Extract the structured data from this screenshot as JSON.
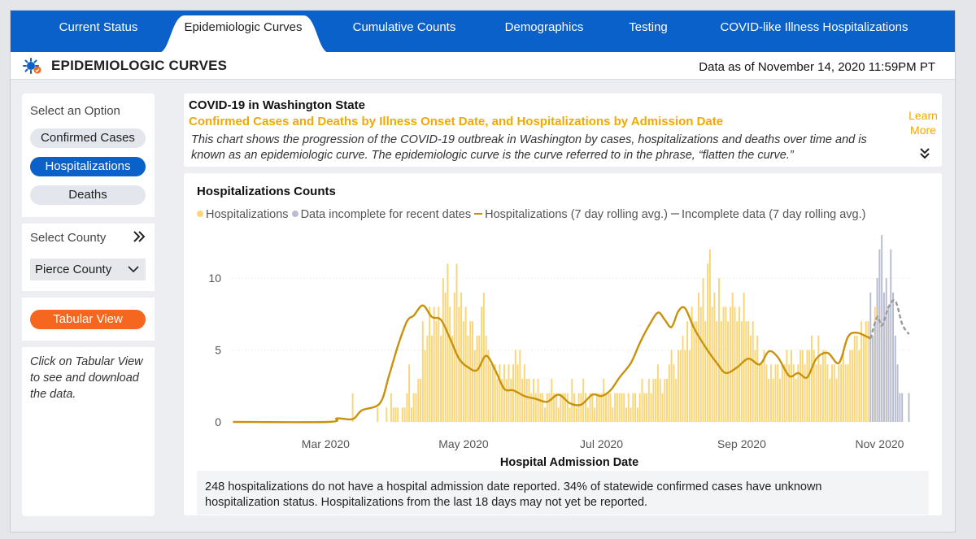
{
  "tabs": [
    {
      "label": "Current Status",
      "center": 108
    },
    {
      "label": "Epidemiologic Curves",
      "center": 286,
      "active": true
    },
    {
      "label": "Cumulative Counts",
      "center": 484
    },
    {
      "label": "Demographics",
      "center": 656
    },
    {
      "label": "Testing",
      "center": 784
    },
    {
      "label": "COVID-like Illness Hospitalizations",
      "center": 988
    }
  ],
  "header": {
    "title": "EPIDEMIOLOGIC CURVES",
    "data_as_of": "Data as of November 14, 2020 11:59PM PT"
  },
  "sidebar": {
    "option_label": "Select an Option",
    "options": [
      "Confirmed Cases",
      "Hospitalizations",
      "Deaths"
    ],
    "selected_option": "Hospitalizations",
    "county_label": "Select County",
    "county_value": "Pierce County",
    "tabular_button": "Tabular View",
    "note": "Click on Tabular View to see and download the data."
  },
  "info": {
    "title": "COVID-19 in Washington State",
    "subtitle": "Confirmed Cases and Deaths by Illness Onset Date, and Hospitalizations by Admission Date",
    "description": "This chart shows the progression of the COVID-19 outbreak in Washington by cases, hospitalizations and deaths over time and is known as an epidemiologic curve. The epidemiologic curve is the curve referred to in the phrase, “flatten the curve.”",
    "learn_more": "Learn More"
  },
  "chart": {
    "footnote": "248 hospitalizations do not have a hospital admission date reported. 34% of statewide confirmed cases have unknown hospitalization status. Hospitalizations from the last 18 days may not yet be reported."
  },
  "chart_data": {
    "type": "bar",
    "title": "Hospitalizations Counts",
    "xlabel": "Hospital Admission Date",
    "ylabel": "",
    "ylim": [
      0,
      13
    ],
    "y_ticks": [
      0,
      5,
      10
    ],
    "x_tick_labels": [
      "Mar 2020",
      "May 2020",
      "Jul 2020",
      "Sep 2020",
      "Nov 2020"
    ],
    "x_range": [
      "2020-01-20",
      "2020-11-14"
    ],
    "incomplete_from": "2020-10-28",
    "legend": [
      {
        "label": "Hospitalizations",
        "color": "#f9d67a",
        "kind": "dot"
      },
      {
        "label": "Data incomplete for recent dates",
        "color": "#b9bdd1",
        "kind": "dot"
      },
      {
        "label": "Hospitalizations (7 day rolling avg.)",
        "color": "#c8920c",
        "kind": "line"
      },
      {
        "label": "Incomplete data (7 day rolling avg.)",
        "color": "#999999",
        "kind": "line"
      }
    ],
    "series": [
      {
        "name": "Hospitalizations",
        "start_date": "2020-01-20",
        "values": [
          0,
          0,
          0,
          0,
          0,
          0,
          0,
          0,
          0,
          0,
          0,
          0,
          0,
          0,
          0,
          0,
          0,
          0,
          0,
          0,
          0,
          0,
          0,
          0,
          0,
          0,
          0,
          0,
          0,
          0,
          0,
          0,
          0,
          0,
          0,
          0,
          0,
          0,
          0,
          0,
          0,
          0,
          0,
          0,
          0,
          0,
          0,
          0,
          0,
          0,
          0,
          0,
          0,
          2,
          0,
          0,
          0,
          0,
          0,
          0,
          0,
          0,
          0,
          0,
          1,
          0,
          0,
          0,
          1,
          0,
          2,
          1,
          1,
          1,
          0,
          1,
          1,
          2,
          4,
          1,
          2,
          2,
          3,
          3,
          7,
          5,
          6,
          8,
          6,
          8,
          7,
          8,
          6,
          10,
          9,
          11,
          8,
          6,
          9,
          11,
          8,
          9,
          7,
          8,
          6,
          7,
          7,
          5,
          6,
          6,
          8,
          9,
          6,
          5,
          4,
          4,
          4,
          3,
          4,
          3,
          4,
          3,
          4,
          3,
          4,
          5,
          4,
          5,
          3,
          4,
          3,
          3,
          2,
          3,
          2,
          3,
          2,
          2,
          1,
          2,
          2,
          3,
          2,
          2,
          1,
          2,
          2,
          2,
          2,
          1,
          3,
          2,
          1,
          2,
          2,
          3,
          2,
          1,
          2,
          2,
          1,
          2,
          2,
          2,
          3,
          2,
          2,
          2,
          1,
          2,
          2,
          2,
          2,
          2,
          1,
          2,
          1,
          2,
          2,
          1,
          2,
          3,
          2,
          2,
          3,
          2,
          3,
          3,
          4,
          3,
          2,
          3,
          3,
          4,
          5,
          4,
          3,
          5,
          5,
          6,
          5,
          7,
          5,
          8,
          7,
          7,
          9,
          8,
          10,
          7,
          11,
          12,
          8,
          9,
          7,
          10,
          7,
          8,
          8,
          7,
          8,
          9,
          8,
          7,
          8,
          7,
          9,
          7,
          7,
          6,
          7,
          5,
          6,
          4,
          4,
          5,
          4,
          3,
          4,
          3,
          4,
          4,
          3,
          4,
          4,
          5,
          4,
          5,
          4,
          3,
          4,
          5,
          5,
          4,
          5,
          5,
          6,
          5,
          4,
          6,
          4,
          5,
          5,
          4,
          3,
          4,
          4,
          3,
          4,
          4,
          5,
          4,
          4,
          5,
          5,
          6,
          6,
          5,
          7,
          6,
          7,
          7,
          6,
          6,
          8,
          9,
          8,
          7,
          6,
          7
        ]
      },
      {
        "name": "Data incomplete for recent dates",
        "start_date": "2020-10-28",
        "values": [
          9,
          6,
          7,
          10,
          12,
          13,
          9,
          10,
          8,
          12,
          9,
          6,
          4,
          2,
          2,
          0,
          0,
          2
        ]
      }
    ],
    "rolling_avg": {
      "name": "Hospitalizations (7 day rolling avg.)",
      "key_points": [
        [
          "2020-01-20",
          0
        ],
        [
          "2020-03-02",
          0
        ],
        [
          "2020-03-06",
          0.25
        ],
        [
          "2020-03-13",
          0.2
        ],
        [
          "2020-03-17",
          0.8
        ],
        [
          "2020-03-25",
          1.3
        ],
        [
          "2020-03-29",
          3.2
        ],
        [
          "2020-04-02",
          5.3
        ],
        [
          "2020-04-06",
          7
        ],
        [
          "2020-04-09",
          7.4
        ],
        [
          "2020-04-13",
          8.1
        ],
        [
          "2020-04-17",
          7.3
        ],
        [
          "2020-04-21",
          7.1
        ],
        [
          "2020-04-25",
          5.8
        ],
        [
          "2020-04-29",
          4.4
        ],
        [
          "2020-05-03",
          3.8
        ],
        [
          "2020-05-07",
          3.6
        ],
        [
          "2020-05-11",
          4.6
        ],
        [
          "2020-05-15",
          3.6
        ],
        [
          "2020-05-19",
          2.3
        ],
        [
          "2020-05-23",
          2.2
        ],
        [
          "2020-05-28",
          1.8
        ],
        [
          "2020-06-02",
          1.6
        ],
        [
          "2020-06-07",
          1.4
        ],
        [
          "2020-06-12",
          1.9
        ],
        [
          "2020-06-17",
          1.3
        ],
        [
          "2020-06-22",
          1.2
        ],
        [
          "2020-06-27",
          1.9
        ],
        [
          "2020-07-01",
          1.8
        ],
        [
          "2020-07-05",
          2.2
        ],
        [
          "2020-07-09",
          3.1
        ],
        [
          "2020-07-14",
          4.1
        ],
        [
          "2020-07-18",
          5.5
        ],
        [
          "2020-07-22",
          6.7
        ],
        [
          "2020-07-26",
          7.6
        ],
        [
          "2020-07-29",
          7.1
        ],
        [
          "2020-08-01",
          6.6
        ],
        [
          "2020-08-04",
          7.7
        ],
        [
          "2020-08-07",
          7.9
        ],
        [
          "2020-08-11",
          6.5
        ],
        [
          "2020-08-16",
          5.2
        ],
        [
          "2020-08-21",
          4.1
        ],
        [
          "2020-08-25",
          3.4
        ],
        [
          "2020-08-30",
          3.8
        ],
        [
          "2020-09-04",
          4.4
        ],
        [
          "2020-09-09",
          4.0
        ],
        [
          "2020-09-13",
          4.9
        ],
        [
          "2020-09-17",
          4.5
        ],
        [
          "2020-09-22",
          3.2
        ],
        [
          "2020-09-26",
          3.4
        ],
        [
          "2020-09-30",
          3.1
        ],
        [
          "2020-10-04",
          4.4
        ],
        [
          "2020-10-09",
          4.8
        ],
        [
          "2020-10-14",
          4.1
        ],
        [
          "2020-10-18",
          5.9
        ],
        [
          "2020-10-22",
          6.2
        ],
        [
          "2020-10-28",
          5.8
        ]
      ]
    },
    "incomplete_avg": {
      "name": "Incomplete data (7 day rolling avg.)",
      "key_points": [
        [
          "2020-10-28",
          5.8
        ],
        [
          "2020-10-31",
          7.3
        ],
        [
          "2020-11-02",
          6.7
        ],
        [
          "2020-11-05",
          8.0
        ],
        [
          "2020-11-08",
          8.4
        ],
        [
          "2020-11-11",
          6.8
        ],
        [
          "2020-11-14",
          6.1
        ]
      ]
    },
    "colors": {
      "bar": "#f9d67a",
      "bar_incomplete": "#b9bdd1",
      "avg_line": "#c8920c",
      "avg_incomplete": "#999999"
    }
  }
}
